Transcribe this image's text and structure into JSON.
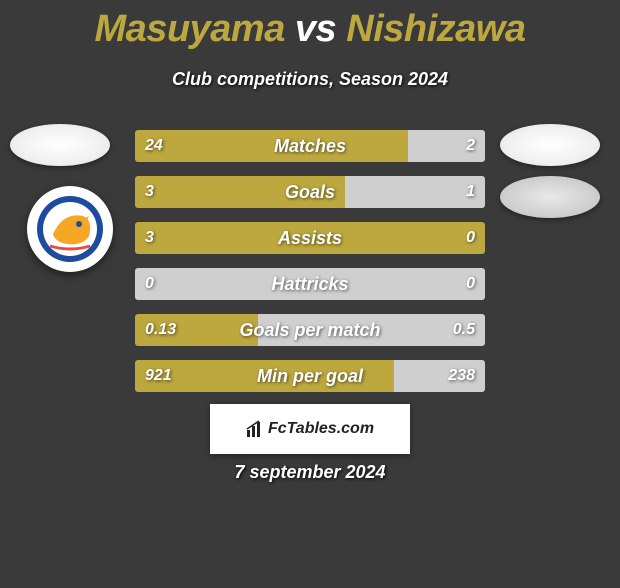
{
  "title": {
    "player1": "Masuyama",
    "vs": "vs",
    "player2": "Nishizawa"
  },
  "subtitle": "Club competitions, Season 2024",
  "colors": {
    "primary": "#bda83f",
    "neutral": "#cfcfcf",
    "background": "#3a3a3a"
  },
  "bars": [
    {
      "label": "Matches",
      "left_val": "24",
      "right_val": "2",
      "left_pct": 78,
      "right_pct": 22,
      "left_color": "#bda83f",
      "right_color": "#cfcfcf"
    },
    {
      "label": "Goals",
      "left_val": "3",
      "right_val": "1",
      "left_pct": 60,
      "right_pct": 40,
      "left_color": "#bda83f",
      "right_color": "#cfcfcf"
    },
    {
      "label": "Assists",
      "left_val": "3",
      "right_val": "0",
      "left_pct": 100,
      "right_pct": 0,
      "left_color": "#bda83f",
      "right_color": "#cfcfcf"
    },
    {
      "label": "Hattricks",
      "left_val": "0",
      "right_val": "0",
      "left_pct": 0,
      "right_pct": 0,
      "full_neutral": true,
      "neutral_color": "#cfcfcf"
    },
    {
      "label": "Goals per match",
      "left_val": "0.13",
      "right_val": "0.5",
      "left_pct": 35,
      "right_pct": 65,
      "left_color": "#bda83f",
      "right_color": "#cfcfcf"
    },
    {
      "label": "Min per goal",
      "left_val": "921",
      "right_val": "238",
      "left_pct": 74,
      "right_pct": 26,
      "left_color": "#bda83f",
      "right_color": "#cfcfcf"
    }
  ],
  "footer_brand": "FcTables.com",
  "date": "7 september 2024"
}
